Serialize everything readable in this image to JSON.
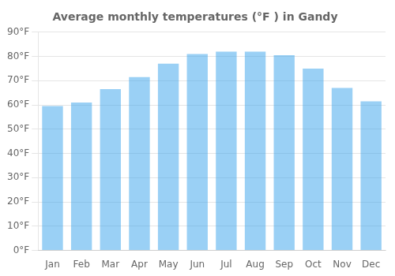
{
  "chart_data": {
    "type": "bar",
    "title": "Average monthly temperatures (°F ) in Gandy",
    "categories": [
      "Jan",
      "Feb",
      "Mar",
      "Apr",
      "May",
      "Jun",
      "Jul",
      "Aug",
      "Sep",
      "Oct",
      "Nov",
      "Dec"
    ],
    "values": [
      59.5,
      61.0,
      66.5,
      71.5,
      77.0,
      81.0,
      82.0,
      82.0,
      80.5,
      75.0,
      67.0,
      61.5
    ],
    "ylim": [
      0,
      90
    ],
    "yticks": [
      {
        "value": 0,
        "label": "0°F"
      },
      {
        "value": 10,
        "label": "10°F"
      },
      {
        "value": 20,
        "label": "20°F"
      },
      {
        "value": 30,
        "label": "30°F"
      },
      {
        "value": 40,
        "label": "40°F"
      },
      {
        "value": 50,
        "label": "50°F"
      },
      {
        "value": 60,
        "label": "60°F"
      },
      {
        "value": 70,
        "label": "70°F"
      },
      {
        "value": 80,
        "label": "80°F"
      },
      {
        "value": 90,
        "label": "90°F"
      }
    ],
    "grid": true
  }
}
